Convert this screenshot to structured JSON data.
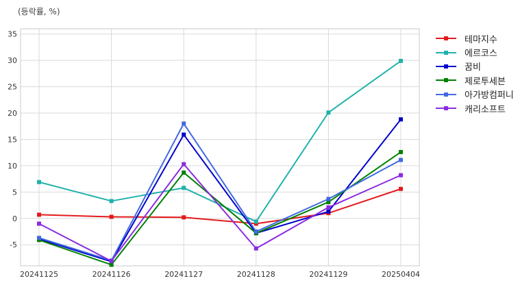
{
  "unit_label": "(등락률, %)",
  "chart_data": {
    "type": "line",
    "x": [
      "20241125",
      "20241126",
      "20241127",
      "20241128",
      "20241129",
      "20250404"
    ],
    "ylim": [
      -9,
      36
    ],
    "yticks": [
      -5,
      0,
      5,
      10,
      15,
      20,
      25,
      30,
      35
    ],
    "grid": true,
    "legend_position": "outside-right",
    "series": [
      {
        "name": "테마지수",
        "color": "#e41a1c",
        "values": [
          0.7,
          0.3,
          0.2,
          -1.0,
          1.0,
          5.6
        ]
      },
      {
        "name": "에르코스",
        "color": "#20b2aa",
        "values": [
          6.9,
          3.3,
          5.8,
          -0.6,
          20.1,
          29.9
        ]
      },
      {
        "name": "꿈비",
        "color": "#0000cd",
        "values": [
          -3.9,
          -8.2,
          15.9,
          -2.8,
          1.3,
          18.8
        ]
      },
      {
        "name": "제로투세븐",
        "color": "#008000",
        "values": [
          -4.1,
          -8.8,
          8.7,
          -2.8,
          3.1,
          12.6
        ]
      },
      {
        "name": "아가방컴퍼니",
        "color": "#4169e1",
        "values": [
          -3.7,
          -8.0,
          18.0,
          -2.5,
          3.7,
          11.1
        ]
      },
      {
        "name": "캐리소프트",
        "color": "#8a2be2",
        "values": [
          -1.0,
          -8.1,
          10.3,
          -5.7,
          2.1,
          8.2
        ]
      }
    ]
  }
}
